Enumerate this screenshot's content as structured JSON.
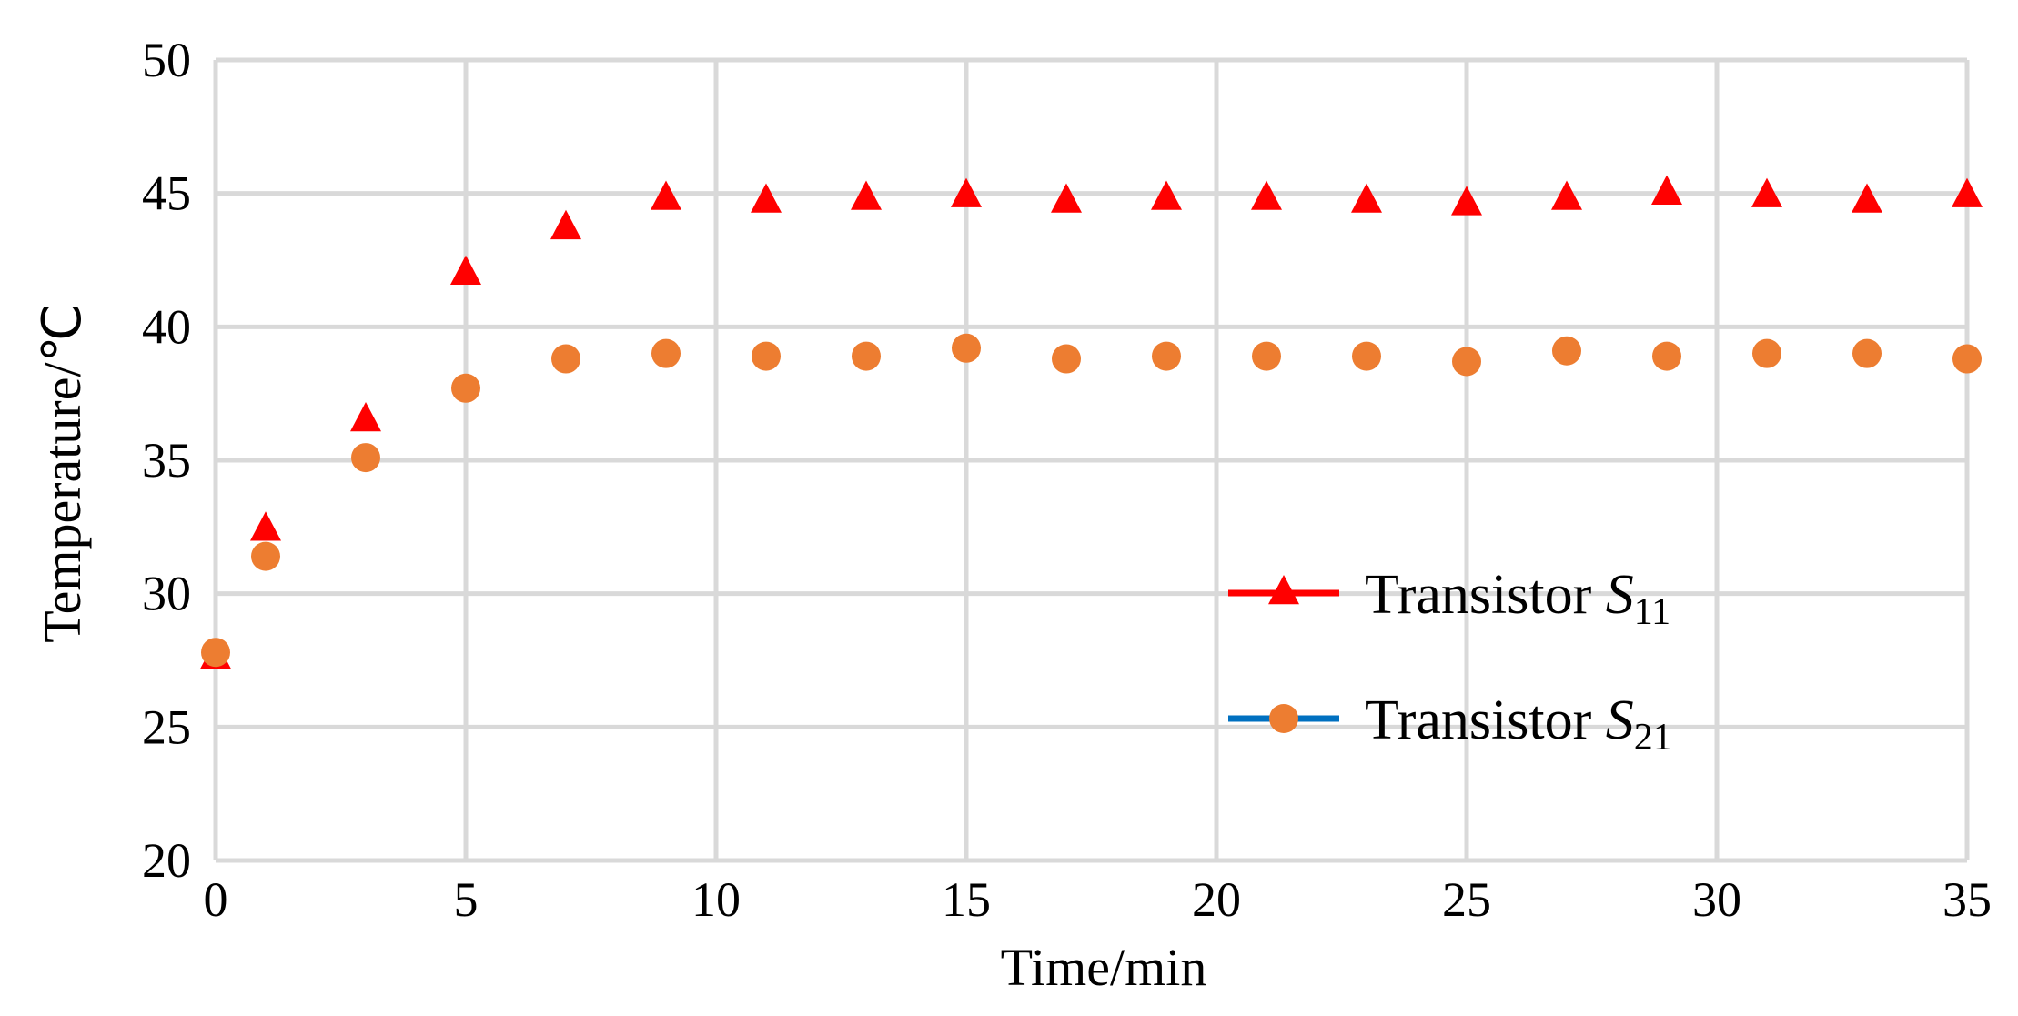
{
  "chart_data": {
    "type": "scatter",
    "title": "",
    "xlabel": "Time/min",
    "ylabel": "Temperature/℃",
    "xlim": [
      0,
      35
    ],
    "ylim": [
      20,
      50
    ],
    "xticks": [
      0,
      5,
      10,
      15,
      20,
      25,
      30,
      35
    ],
    "yticks": [
      20,
      25,
      30,
      35,
      40,
      45,
      50
    ],
    "x_tick_labels": [
      "0",
      "5",
      "10",
      "15",
      "20",
      "25",
      "30",
      "35"
    ],
    "y_tick_labels": [
      "20",
      "25",
      "30",
      "35",
      "40",
      "45",
      "50"
    ],
    "grid": true,
    "legend_position": "right",
    "series": [
      {
        "name": "Transistor S11",
        "label_main": "Transistor ",
        "label_symbol": "S",
        "label_sub": "11",
        "marker": "triangle",
        "color": "#ff0000",
        "legend_line_color": "#ff0000",
        "x": [
          0,
          1,
          3,
          5,
          7,
          9,
          11,
          13,
          15,
          17,
          19,
          21,
          23,
          25,
          27,
          29,
          31,
          33,
          35
        ],
        "y": [
          27.6,
          32.4,
          36.5,
          42.0,
          43.7,
          44.8,
          44.7,
          44.8,
          44.9,
          44.7,
          44.8,
          44.8,
          44.7,
          44.6,
          44.8,
          45.0,
          44.9,
          44.7,
          44.9
        ]
      },
      {
        "name": "Transistor S21",
        "label_main": "Transistor ",
        "label_symbol": "S",
        "label_sub": "21",
        "marker": "circle",
        "color": "#ed7d31",
        "legend_line_color": "#0070c0",
        "x": [
          0,
          1,
          3,
          5,
          7,
          9,
          11,
          13,
          15,
          17,
          19,
          21,
          23,
          25,
          27,
          29,
          31,
          33,
          35
        ],
        "y": [
          27.8,
          31.4,
          35.1,
          37.7,
          38.8,
          39.0,
          38.9,
          38.9,
          39.2,
          38.8,
          38.9,
          38.9,
          38.9,
          38.7,
          39.1,
          38.9,
          39.0,
          39.0,
          38.8
        ]
      }
    ]
  }
}
